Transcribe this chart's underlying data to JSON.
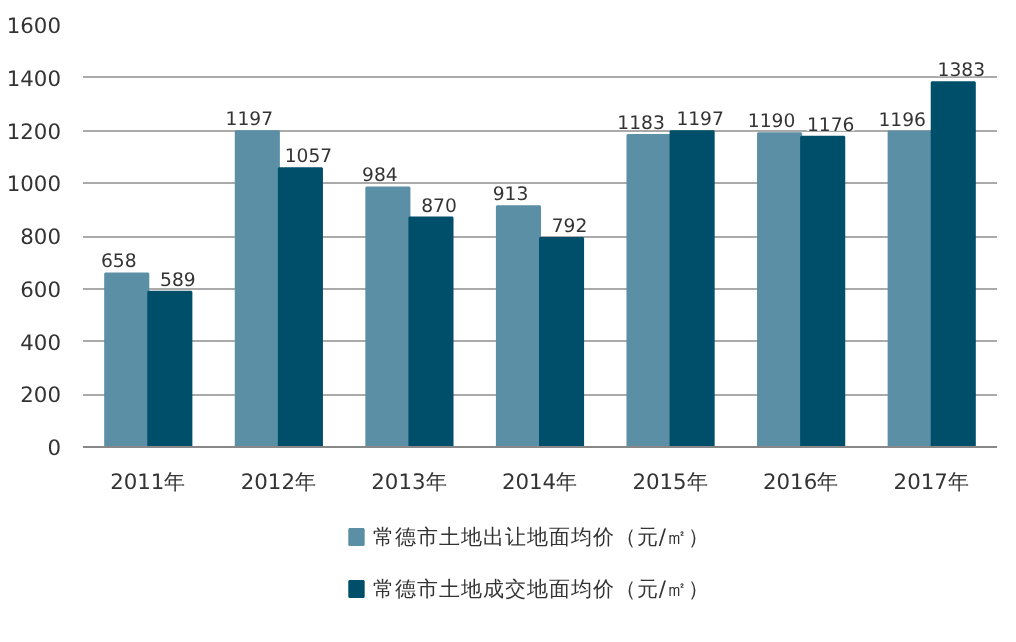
{
  "chart_data": {
    "type": "bar",
    "categories": [
      "2011年",
      "2012年",
      "2013年",
      "2014年",
      "2015年",
      "2016年",
      "2017年"
    ],
    "series": [
      {
        "name": "常德市土地出让地面均价（元/㎡）",
        "color": "#5b8fa5",
        "values": [
          658,
          1197,
          984,
          913,
          1183,
          1190,
          1196
        ]
      },
      {
        "name": "常德市土地成交地面均价（元/㎡）",
        "color": "#004f6a",
        "values": [
          589,
          1057,
          870,
          792,
          1197,
          1176,
          1383
        ]
      }
    ],
    "ylim": [
      0,
      1600
    ],
    "yticks": [
      0,
      200,
      400,
      600,
      800,
      1000,
      1200,
      1400,
      1600
    ],
    "grid": "y",
    "legend": "bottom",
    "data_labels": true
  }
}
